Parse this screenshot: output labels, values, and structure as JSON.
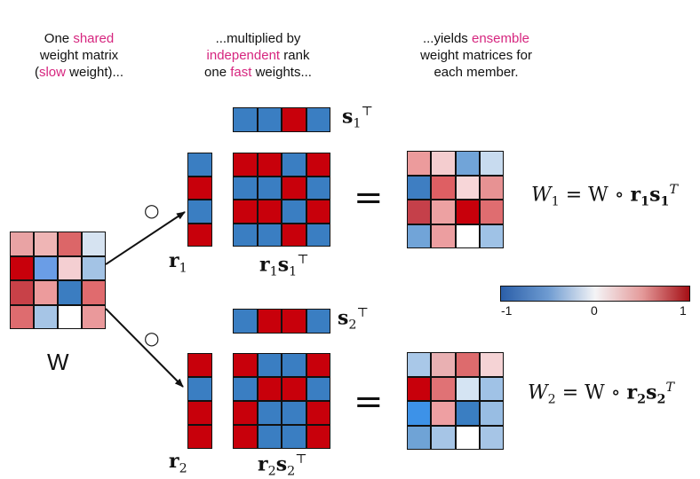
{
  "captions": {
    "left": {
      "l1_a": "One ",
      "l1_b": "shared",
      "l2": "weight matrix",
      "l3_a": "(",
      "l3_b": "slow",
      "l3_c": " weight)..."
    },
    "middle": {
      "l1": "...multiplied by",
      "l2_a": "independent",
      "l2_b": " rank",
      "l3_a": "one ",
      "l3_b": "fast",
      "l3_c": " weights..."
    },
    "right": {
      "l1_a": "...yields ",
      "l1_b": "ensemble",
      "l2": "weight matrices for",
      "l3": "each member."
    }
  },
  "labels": {
    "w": "W",
    "circle_op": "○",
    "equals": "=",
    "r1": "r",
    "r1_sub": "1",
    "r2": "r",
    "r2_sub": "2",
    "s1": "s",
    "s1_sub": "1",
    "s1_sup": "⊤",
    "s2": "s",
    "s2_sub": "2",
    "s2_sup": "⊤",
    "r1s1": "r",
    "r1s1_sub": "1",
    "r1s1_s": "s",
    "r1s1_sub2": "1",
    "r1s1_sup": "⊤",
    "r2s2": "r",
    "r2s2_sub": "2",
    "r2s2_s": "s",
    "r2s2_sub2": "2",
    "r2s2_sup": "⊤"
  },
  "equations": {
    "eq1": {
      "lhs": "W",
      "lhs_sub": "1",
      "mid": " = W ∘ ",
      "r": "r",
      "r_sub": "1",
      "s": "s",
      "s_sub": "1",
      "sup": "T"
    },
    "eq2": {
      "lhs": "W",
      "lhs_sub": "2",
      "mid": " = W ∘ ",
      "r": "r",
      "r_sub": "2",
      "s": "s",
      "s_sub": "2",
      "sup": "T"
    }
  },
  "colorbar": {
    "ticks": [
      "-1",
      "0",
      "1"
    ],
    "min_color": "#2b5fa9",
    "mid_color": "#f4f4f6",
    "max_color": "#a50f15"
  },
  "colors": {
    "red": "#c8000b",
    "blue": "#3a7ec2"
  },
  "matrices": {
    "W": [
      [
        "#e9a3a4",
        "#efb5b5",
        "#dc6668",
        "#d6e3f1"
      ],
      [
        "#c8000b",
        "#6a9de6",
        "#f4cfd2",
        "#a3c3e5"
      ],
      [
        "#c84148",
        "#ec9b9c",
        "#3b7dc1",
        "#e06b6e"
      ],
      [
        "#de6c6f",
        "#a6c5e6",
        "#ffffff",
        "#ea999b"
      ]
    ],
    "s1": [
      [
        "B",
        "B",
        "R",
        "B"
      ]
    ],
    "s2": [
      [
        "B",
        "R",
        "R",
        "B"
      ]
    ],
    "r1": [
      [
        "B"
      ],
      [
        "R"
      ],
      [
        "B"
      ],
      [
        "R"
      ]
    ],
    "r2": [
      [
        "R"
      ],
      [
        "B"
      ],
      [
        "R"
      ],
      [
        "R"
      ]
    ],
    "r1s1": [
      [
        "R",
        "R",
        "B",
        "R"
      ],
      [
        "B",
        "B",
        "R",
        "B"
      ],
      [
        "R",
        "R",
        "B",
        "R"
      ],
      [
        "B",
        "B",
        "R",
        "B"
      ]
    ],
    "r2s2": [
      [
        "R",
        "B",
        "B",
        "R"
      ],
      [
        "B",
        "R",
        "R",
        "B"
      ],
      [
        "R",
        "B",
        "B",
        "R"
      ],
      [
        "R",
        "B",
        "B",
        "R"
      ]
    ],
    "W1": [
      [
        "#ec9b9c",
        "#f4cdcf",
        "#71a4d8",
        "#c8dbef"
      ],
      [
        "#3e7ec2",
        "#de5f63",
        "#f7d6d8",
        "#e79293"
      ],
      [
        "#c5404a",
        "#eda1a2",
        "#c8000b",
        "#df6d70"
      ],
      [
        "#71a4d8",
        "#ec9ea0",
        "#ffffff",
        "#9fc2e6"
      ]
    ],
    "W2": [
      [
        "#a9c8e8",
        "#e9b0b2",
        "#dd6b6d",
        "#f5d3d5"
      ],
      [
        "#c8000b",
        "#e07275",
        "#d5e4f3",
        "#a0c2e6"
      ],
      [
        "#3d92e8",
        "#ee9fa2",
        "#3a7ec2",
        "#98bde3"
      ],
      [
        "#6fa3d6",
        "#a6c5e6",
        "#ffffff",
        "#a6c5e6"
      ]
    ]
  }
}
